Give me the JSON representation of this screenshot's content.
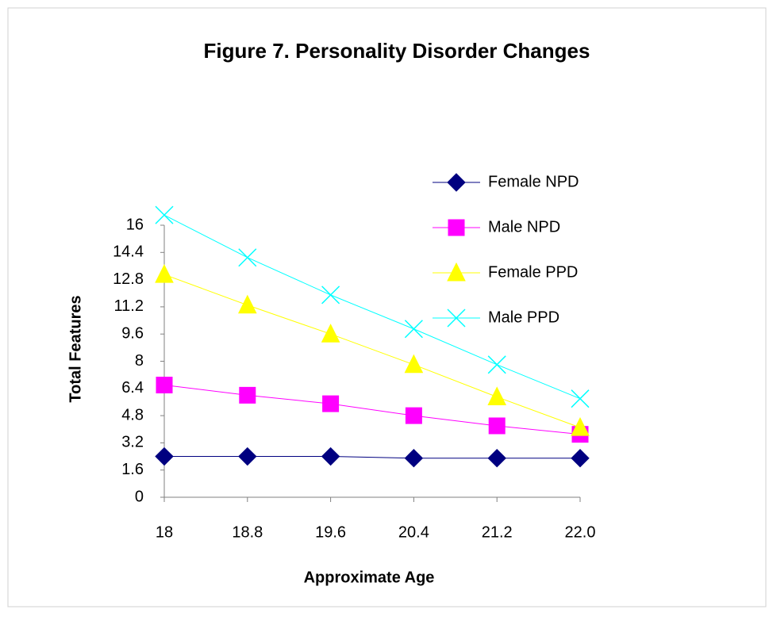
{
  "chart_data": {
    "type": "line",
    "title": "Figure 7. Personality Disorder Changes",
    "x_label": "Approximate Age",
    "y_label": "Total Features",
    "categories": [
      "18",
      "18.8",
      "19.6",
      "20.4",
      "21.2",
      "22.0"
    ],
    "ylim": [
      0,
      16
    ],
    "yticks": [
      0,
      1.6,
      3.2,
      4.8,
      6.4,
      8,
      9.6,
      11.2,
      12.8,
      14.4,
      16
    ],
    "grid": false,
    "legend": "top-right",
    "series": [
      {
        "name": "Female NPD",
        "color": "#000080",
        "marker": "diamond",
        "values": [
          2.4,
          2.4,
          2.4,
          2.3,
          2.3,
          2.3
        ]
      },
      {
        "name": "Male NPD",
        "color": "#ff00ff",
        "marker": "square",
        "values": [
          6.6,
          6.0,
          5.5,
          4.8,
          4.2,
          3.7
        ]
      },
      {
        "name": "Female PPD",
        "color": "#ffff00",
        "marker": "triangle",
        "values": [
          13.1,
          11.3,
          9.6,
          7.8,
          5.9,
          4.1
        ]
      },
      {
        "name": "Male PPD",
        "color": "#00ffff",
        "marker": "x",
        "values": [
          16.6,
          14.1,
          11.9,
          9.9,
          7.8,
          5.8
        ]
      }
    ]
  }
}
